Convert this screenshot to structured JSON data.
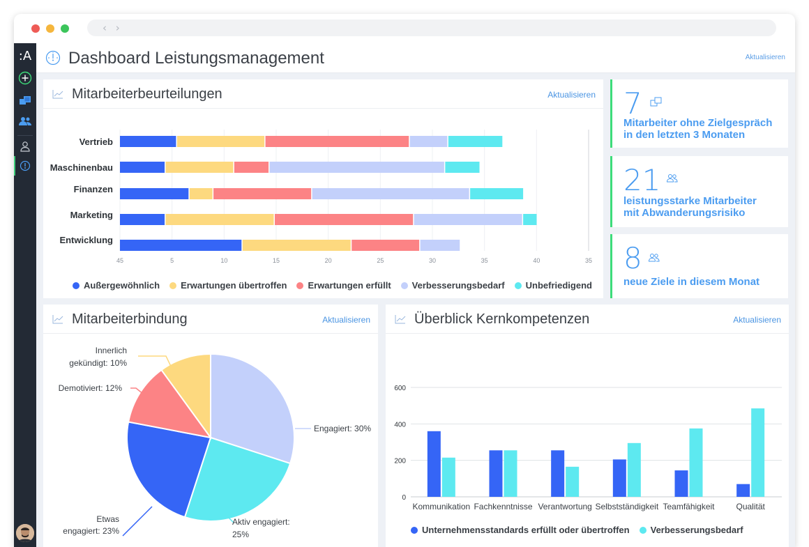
{
  "window": {
    "dots": [
      "#ee5b56",
      "#f5b63d",
      "#3cc55b"
    ],
    "nav_glyphs": "‹ ›"
  },
  "sidebar": {
    "logo": ":A",
    "items": [
      {
        "icon": "add-circle-icon"
      },
      {
        "icon": "folders-icon"
      },
      {
        "icon": "team-icon"
      },
      {
        "icon": "user-icon"
      },
      {
        "icon": "dashboard-gauge-icon",
        "active": true
      }
    ]
  },
  "header": {
    "title": "Dashboard Leistungsmanagement",
    "refresh": "Aktualisieren",
    "icon": "gauge-icon"
  },
  "appraisals": {
    "title": "Mitarbeiterbeurteilungen",
    "refresh": "Aktualisieren"
  },
  "kpis": [
    {
      "value": "7",
      "label_line1": "Mitarbeiter ohne Zielgespräch",
      "label_line2": "in den letzten 3 Monaten",
      "icon": "folders-icon"
    },
    {
      "value": "21",
      "label_line1": "leistungsstarke Mitarbeiter",
      "label_line2": "mit Abwanderungsrisiko",
      "icon": "team-icon"
    },
    {
      "value": "8",
      "label_line1": "neue Ziele in diesem Monat",
      "label_line2": "",
      "icon": "team-icon"
    }
  ],
  "retention": {
    "title": "Mitarbeiterbindung",
    "refresh": "Aktualisieren"
  },
  "competencies": {
    "title": "Überblick Kernkompetenzen",
    "refresh": "Aktualisieren"
  },
  "colors": {
    "accent": "#4b9cf0",
    "green": "#3ddc7a",
    "dark_blue": "#3565f6",
    "yellow": "#fdd97f",
    "red": "#fc8385",
    "light_blue": "#c3d0fb",
    "cyan": "#5de9f0"
  },
  "chart_data": [
    {
      "type": "bar",
      "orientation": "horizontal",
      "stacked": true,
      "categories": [
        "Vertrieb",
        "Maschinenbau",
        "Finanzen",
        "Marketing",
        "Entwicklung"
      ],
      "x_tick_labels": [
        "45",
        "5",
        "10",
        "15",
        "20",
        "25",
        "30",
        "35",
        "40",
        "35"
      ],
      "series": [
        {
          "name": "Außergewöhnlich",
          "color": "#3565f6",
          "values": [
            5.5,
            4.4,
            6.7,
            4.4,
            11.8
          ]
        },
        {
          "name": "Erwartungen übertroffen",
          "color": "#fdd97f",
          "values": [
            8.5,
            6.6,
            2.3,
            10.5,
            10.5
          ]
        },
        {
          "name": "Erwartungen erfüllt",
          "color": "#fc8385",
          "values": [
            13.9,
            3.4,
            9.5,
            13.4,
            6.6
          ]
        },
        {
          "name": "Verbesserungsbedarf",
          "color": "#c3d0fb",
          "values": [
            3.7,
            16.9,
            15.2,
            10.5,
            3.9
          ]
        },
        {
          "name": "Unbefriedigend",
          "color": "#5de9f0",
          "values": [
            5.3,
            3.4,
            5.2,
            1.4,
            0
          ]
        }
      ],
      "grid": true,
      "legend": "bottom"
    },
    {
      "type": "pie",
      "slices": [
        {
          "label_line1": "Engagiert: 30%",
          "label_line2": "",
          "value": 30,
          "color": "#c3d0fb"
        },
        {
          "label_line1": "Aktiv engagiert:",
          "label_line2": "25%",
          "value": 25,
          "color": "#5de9f0"
        },
        {
          "label_line1": "Etwas",
          "label_line2": "engagiert: 23%",
          "value": 23,
          "color": "#3565f6"
        },
        {
          "label_line1": "Demotiviert: 12%",
          "label_line2": "",
          "value": 12,
          "color": "#fc8385"
        },
        {
          "label_line1": "Innerlich",
          "label_line2": "gekündigt: 10%",
          "value": 10,
          "color": "#fdd97f"
        }
      ]
    },
    {
      "type": "bar",
      "categories": [
        "Kommunikation",
        "Fachkenntnisse",
        "Verantwortung",
        "Selbstständigkeit",
        "Teamfähigkeit",
        "Qualität"
      ],
      "series": [
        {
          "name": "Unternehmensstandards erfüllt oder übertroffen",
          "color": "#3565f6",
          "values": [
            360,
            255,
            255,
            205,
            145,
            70
          ]
        },
        {
          "name": "Verbesserungsbedarf",
          "color": "#5de9f0",
          "values": [
            215,
            255,
            165,
            295,
            375,
            485
          ]
        }
      ],
      "y_ticks": [
        0,
        200,
        400,
        600
      ],
      "ylim": [
        0,
        600
      ],
      "grid": true,
      "legend": "bottom"
    }
  ]
}
